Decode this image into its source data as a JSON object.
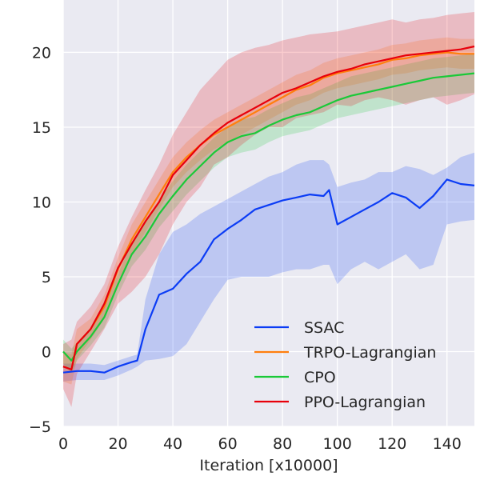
{
  "chart_data": {
    "type": "line",
    "xlabel": "Iteration [x10000]",
    "ylabel": "",
    "xlim": [
      0,
      150
    ],
    "ylim": [
      -5,
      23.5
    ],
    "xticks": [
      0,
      20,
      40,
      60,
      80,
      100,
      120,
      140
    ],
    "yticks": [
      -5,
      0,
      5,
      10,
      15,
      20
    ],
    "xtick_labels": [
      "0",
      "20",
      "40",
      "60",
      "80",
      "100",
      "120",
      "140"
    ],
    "ytick_labels": [
      "−5",
      "0",
      "5",
      "10",
      "15",
      "20"
    ],
    "grid": true,
    "legend_position": "bottom-right",
    "series": [
      {
        "name": "SSAC",
        "color": "#0b3cf5",
        "x": [
          0,
          5,
          10,
          15,
          20,
          25,
          27,
          30,
          35,
          40,
          45,
          50,
          55,
          60,
          65,
          70,
          75,
          80,
          85,
          90,
          95,
          97,
          100,
          105,
          110,
          115,
          120,
          125,
          130,
          135,
          140,
          145,
          150
        ],
        "y": [
          -1.4,
          -1.3,
          -1.3,
          -1.4,
          -1.0,
          -0.7,
          -0.6,
          1.5,
          3.8,
          4.2,
          5.2,
          6.0,
          7.5,
          8.2,
          8.8,
          9.5,
          9.8,
          10.1,
          10.3,
          10.5,
          10.4,
          10.8,
          8.5,
          9.0,
          9.5,
          10.0,
          10.6,
          10.3,
          9.6,
          10.4,
          11.5,
          11.2,
          11.1
        ],
        "low": [
          -2.0,
          -1.9,
          -1.9,
          -1.9,
          -1.6,
          -1.2,
          -1.0,
          -0.6,
          -0.5,
          -0.3,
          0.5,
          2.0,
          3.5,
          4.8,
          5.0,
          5.0,
          5.0,
          5.3,
          5.5,
          5.5,
          5.8,
          5.8,
          4.5,
          5.5,
          6.0,
          5.5,
          6.0,
          6.5,
          5.5,
          5.8,
          8.5,
          8.7,
          8.8
        ],
        "high": [
          -0.8,
          -0.8,
          -0.8,
          -0.9,
          -0.6,
          -0.3,
          -0.2,
          3.5,
          6.5,
          8.0,
          8.5,
          9.2,
          9.7,
          10.2,
          10.7,
          11.2,
          11.7,
          12.0,
          12.5,
          12.8,
          12.8,
          12.5,
          11.0,
          11.3,
          11.5,
          12.0,
          12.0,
          12.4,
          12.2,
          11.8,
          12.3,
          13.0,
          13.3
        ]
      },
      {
        "name": "TRPO-Lagrangian",
        "color": "#ff7f0e",
        "x": [
          0,
          3,
          5,
          10,
          15,
          20,
          25,
          30,
          35,
          40,
          45,
          50,
          55,
          60,
          65,
          70,
          75,
          80,
          85,
          90,
          95,
          100,
          105,
          110,
          115,
          120,
          125,
          130,
          135,
          140,
          145,
          150
        ],
        "y": [
          -1.0,
          -1.2,
          0.5,
          1.5,
          3.0,
          5.5,
          7.5,
          9.0,
          10.5,
          12.0,
          13.0,
          13.8,
          14.5,
          15.0,
          15.5,
          16.0,
          16.5,
          17.0,
          17.5,
          17.8,
          18.3,
          18.6,
          18.8,
          19.0,
          19.2,
          19.5,
          19.6,
          19.8,
          19.9,
          20.0,
          19.9,
          19.9
        ],
        "low": [
          -2.0,
          -2.2,
          -0.5,
          0.8,
          2.2,
          4.7,
          6.5,
          8.0,
          9.5,
          11.0,
          12.0,
          12.8,
          13.5,
          14.0,
          14.5,
          15.0,
          15.5,
          16.0,
          16.5,
          16.8,
          17.3,
          17.6,
          17.8,
          18.0,
          18.2,
          18.5,
          18.6,
          18.8,
          18.9,
          19.0,
          18.9,
          18.9
        ],
        "high": [
          0.0,
          -0.2,
          1.5,
          2.2,
          3.8,
          6.3,
          8.5,
          10.0,
          11.5,
          13.0,
          14.0,
          14.8,
          15.5,
          16.0,
          16.5,
          17.0,
          17.5,
          18.0,
          18.5,
          18.8,
          19.3,
          19.6,
          19.8,
          20.0,
          20.2,
          20.5,
          20.6,
          20.8,
          20.9,
          21.0,
          20.9,
          20.9
        ]
      },
      {
        "name": "CPO",
        "color": "#1ac938",
        "x": [
          0,
          3,
          5,
          10,
          15,
          20,
          25,
          30,
          35,
          40,
          45,
          50,
          55,
          60,
          65,
          70,
          75,
          80,
          85,
          90,
          95,
          100,
          105,
          110,
          115,
          120,
          125,
          130,
          135,
          140,
          145,
          150
        ],
        "y": [
          0.0,
          -0.6,
          0.0,
          1.0,
          2.3,
          4.5,
          6.5,
          7.7,
          9.2,
          10.4,
          11.5,
          12.4,
          13.3,
          14.0,
          14.4,
          14.6,
          15.1,
          15.5,
          15.8,
          16.0,
          16.4,
          16.8,
          17.1,
          17.3,
          17.5,
          17.7,
          17.9,
          18.1,
          18.3,
          18.4,
          18.5,
          18.6
        ],
        "low": [
          -0.8,
          -1.4,
          -0.6,
          0.4,
          1.6,
          3.8,
          5.7,
          6.8,
          8.3,
          9.4,
          10.5,
          11.4,
          12.3,
          13.0,
          13.3,
          13.5,
          14.0,
          14.4,
          14.6,
          14.8,
          15.2,
          15.6,
          15.8,
          16.0,
          16.2,
          16.4,
          16.6,
          16.8,
          17.0,
          17.1,
          17.2,
          17.3
        ],
        "high": [
          0.8,
          0.2,
          0.6,
          1.6,
          3.0,
          5.2,
          7.3,
          8.6,
          10.1,
          11.4,
          12.5,
          13.4,
          14.3,
          15.0,
          15.5,
          15.7,
          16.2,
          16.6,
          17.0,
          17.2,
          17.6,
          18.0,
          18.4,
          18.6,
          18.8,
          19.0,
          19.2,
          19.4,
          19.6,
          19.7,
          19.8,
          19.9
        ]
      },
      {
        "name": "PPO-Lagrangian",
        "color": "#e8000b",
        "x": [
          0,
          3,
          5,
          10,
          15,
          20,
          25,
          30,
          35,
          40,
          45,
          50,
          55,
          60,
          65,
          70,
          75,
          80,
          85,
          90,
          95,
          100,
          105,
          110,
          115,
          120,
          125,
          130,
          135,
          140,
          145,
          150
        ],
        "y": [
          -1.0,
          -1.2,
          0.5,
          1.5,
          3.2,
          5.6,
          7.2,
          8.7,
          10.0,
          11.8,
          12.8,
          13.8,
          14.6,
          15.3,
          15.8,
          16.3,
          16.8,
          17.3,
          17.6,
          18.0,
          18.4,
          18.7,
          18.9,
          19.2,
          19.4,
          19.6,
          19.8,
          19.9,
          20.0,
          20.1,
          20.2,
          20.4
        ],
        "low": [
          -2.5,
          -3.7,
          -1.5,
          0.0,
          1.5,
          3.2,
          4.0,
          5.0,
          6.5,
          8.5,
          10.0,
          11.0,
          12.5,
          13.0,
          13.8,
          14.5,
          15.0,
          15.0,
          15.6,
          15.8,
          16.0,
          16.5,
          16.4,
          16.8,
          17.0,
          16.8,
          16.5,
          16.8,
          17.0,
          16.5,
          16.8,
          17.2
        ],
        "high": [
          0.5,
          0.8,
          2.0,
          3.0,
          4.5,
          7.0,
          9.0,
          10.8,
          12.5,
          14.5,
          16.0,
          17.5,
          18.5,
          19.5,
          20.0,
          20.3,
          20.5,
          20.8,
          21.0,
          21.2,
          21.3,
          21.4,
          21.6,
          21.8,
          22.0,
          22.2,
          22.0,
          22.2,
          22.3,
          22.5,
          22.6,
          22.7
        ]
      }
    ]
  }
}
